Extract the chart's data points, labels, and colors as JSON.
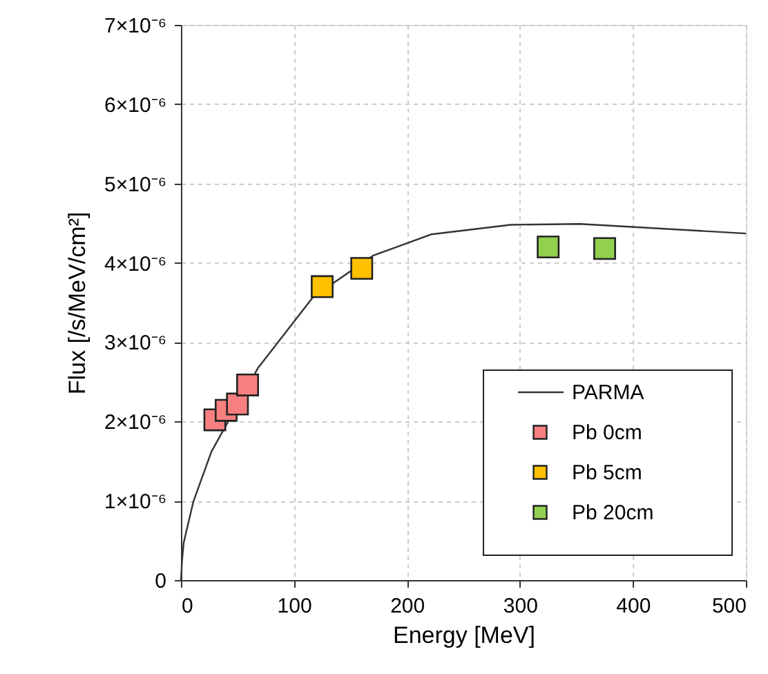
{
  "chart_data": {
    "type": "scatter",
    "xlabel": "Energy [MeV]",
    "ylabel": "Flux [/s/MeV/cm²]",
    "xlim": [
      0,
      500
    ],
    "xticks": [
      0,
      100,
      200,
      300,
      400,
      500
    ],
    "ylim": [
      0,
      7e-06
    ],
    "yticks": [
      {
        "value": 0,
        "label": "0"
      },
      {
        "value": 1e-06,
        "label": "1×10⁻⁶"
      },
      {
        "value": 2e-06,
        "label": "2×10⁻⁶"
      },
      {
        "value": 3e-06,
        "label": "3×10⁻⁶"
      },
      {
        "value": 4e-06,
        "label": "4×10⁻⁶"
      },
      {
        "value": 5e-06,
        "label": "5×10⁻⁶"
      },
      {
        "value": 6e-06,
        "label": "6×10⁻⁶"
      },
      {
        "value": 7e-06,
        "label": "7×10⁻⁶"
      }
    ],
    "grid": true,
    "legend": "bottom right",
    "marker": "square",
    "series": [
      {
        "name": "PARMA",
        "type": "line",
        "color": "#333333",
        "marker": "none",
        "x": [
          0,
          1,
          2.4,
          11,
          27,
          68,
          117,
          170,
          222,
          292,
          353,
          500
        ],
        "values": [
          0,
          2.5e-07,
          4.7e-07,
          9.9e-07,
          1.62e-06,
          2.67e-06,
          3.57e-06,
          4.09e-06,
          4.36e-06,
          4.48e-06,
          4.49e-06,
          4.37e-06
        ]
      },
      {
        "name": "Pb 0cm",
        "color": "#f77f7f",
        "x": [
          30,
          40,
          50,
          59
        ],
        "values": [
          2.02e-06,
          2.14e-06,
          2.22e-06,
          2.46e-06
        ]
      },
      {
        "name": "Pb 5cm",
        "color": "#ffc000",
        "x": [
          125,
          160
        ],
        "values": [
          3.7e-06,
          3.93e-06
        ]
      },
      {
        "name": "Pb 20cm",
        "color": "#92d050",
        "x": [
          325,
          375
        ],
        "values": [
          4.2e-06,
          4.18e-06
        ]
      }
    ]
  }
}
